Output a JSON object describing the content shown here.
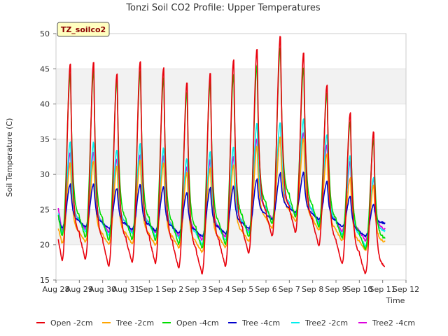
{
  "chart_data": {
    "type": "line",
    "title": "Tonzi Soil CO2 Profile: Upper Temperatures",
    "xlabel": "Time",
    "ylabel": "Soil Temperature (C)",
    "ylim": [
      15,
      50
    ],
    "yticks": [
      15,
      20,
      25,
      30,
      35,
      40,
      45,
      50
    ],
    "xlim": [
      0,
      15
    ],
    "xtick_labels": [
      "Aug 28",
      "Aug 29",
      "Aug 30",
      "Aug 31",
      "Sep 1",
      "Sep 2",
      "Sep 3",
      "Sep 4",
      "Sep 5",
      "Sep 6",
      "Sep 7",
      "Sep 8",
      "Sep 9",
      "Sep 10",
      "Sep 11",
      "Sep 12"
    ],
    "grid": "horizontal alternating bands",
    "legend_position": "bottom",
    "annotation": "TZ_soilco2",
    "series": [
      {
        "name": "Open -2cm",
        "color": "#e8000b",
        "daily_min": [
          17.8,
          18.0,
          17.0,
          17.5,
          17.4,
          16.7,
          15.9,
          17.0,
          18.8,
          21.3,
          21.8,
          19.9,
          17.4,
          15.9,
          null
        ],
        "daily_max": [
          45.8,
          46.2,
          44.5,
          46.3,
          45.3,
          43.2,
          44.6,
          46.4,
          48.0,
          49.8,
          47.4,
          42.8,
          38.9,
          36.2,
          null
        ],
        "start": 20.8,
        "end": 17.0
      },
      {
        "name": "Tree -2cm",
        "color": "#ffa500",
        "daily_min": [
          20.3,
          20.4,
          20.0,
          20.2,
          20.0,
          19.6,
          19.0,
          19.6,
          20.5,
          22.4,
          23.4,
          22.1,
          20.6,
          19.2,
          null
        ],
        "daily_max": [
          31.7,
          32.0,
          31.2,
          32.2,
          31.7,
          30.4,
          31.0,
          31.4,
          34.1,
          35.3,
          35.2,
          33.0,
          29.6,
          28.5,
          null
        ],
        "start": 22.4,
        "end": 20.5
      },
      {
        "name": "Open -4cm",
        "color": "#00dd00",
        "daily_min": [
          21.2,
          21.1,
          20.6,
          20.8,
          20.6,
          20.1,
          19.5,
          20.1,
          21.1,
          23.0,
          24.0,
          22.6,
          21.0,
          19.4,
          null
        ],
        "daily_max": [
          44.5,
          44.8,
          43.5,
          44.8,
          43.8,
          41.8,
          43.2,
          44.3,
          45.6,
          48.2,
          45.3,
          41.6,
          37.5,
          35.0,
          null
        ],
        "start": 24.2,
        "end": 21.0
      },
      {
        "name": "Tree -4cm",
        "color": "#0000cc",
        "daily_min": [
          22.4,
          22.6,
          22.3,
          22.2,
          22.0,
          21.7,
          21.2,
          21.6,
          22.3,
          23.6,
          24.6,
          23.6,
          22.6,
          21.2,
          null
        ],
        "daily_max": [
          28.6,
          28.7,
          28.1,
          28.6,
          28.3,
          27.5,
          28.1,
          28.3,
          29.3,
          30.2,
          30.3,
          29.0,
          26.9,
          25.8,
          null
        ],
        "start": 23.8,
        "end": 23.1
      },
      {
        "name": "Tree2 -2cm",
        "color": "#00eeee",
        "daily_min": [
          21.7,
          21.9,
          21.4,
          21.6,
          21.3,
          20.9,
          20.1,
          20.7,
          21.7,
          23.5,
          24.3,
          23.0,
          21.5,
          19.8,
          null
        ],
        "daily_max": [
          34.6,
          34.6,
          33.6,
          34.4,
          33.8,
          32.3,
          33.3,
          34.0,
          37.3,
          37.5,
          38.0,
          35.8,
          32.8,
          29.6,
          null
        ],
        "start": 24.5,
        "end": 22.0
      },
      {
        "name": "Tree2 -4cm",
        "color": "#dd00dd",
        "daily_min": [
          22.0,
          22.2,
          21.8,
          21.9,
          21.7,
          21.3,
          20.7,
          21.1,
          22.0,
          23.7,
          24.4,
          23.2,
          21.9,
          20.6,
          null
        ],
        "daily_max": [
          33.2,
          33.2,
          32.2,
          32.9,
          32.6,
          31.2,
          32.1,
          32.6,
          35.2,
          35.3,
          36.1,
          34.2,
          31.8,
          29.4,
          null
        ],
        "start": 25.2,
        "end": 22.3
      }
    ]
  }
}
